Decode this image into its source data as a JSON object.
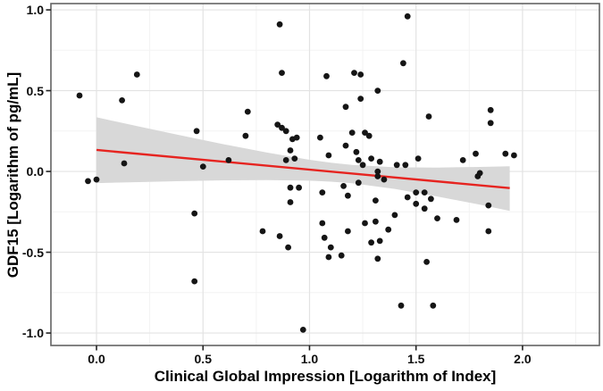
{
  "figure": {
    "background": "#ffffff",
    "colors": {
      "point": "#151515",
      "regression_line": "#e62420",
      "ci_band": "#d8d8d8",
      "grid_major": "#e3e3e3",
      "grid_minor": "#f3f3f3",
      "panel_border": "#636363",
      "tick_mark": "#222222",
      "text": "#000000"
    },
    "x_axis": {
      "title": "Clinical Global Impression [Logarithm of Index]",
      "ticks": [
        0.0,
        0.5,
        1.0,
        1.5,
        2.0
      ],
      "tick_labels": [
        "0.0",
        "0.5",
        "1.0",
        "1.5",
        "2.0"
      ],
      "minor_ticks": [
        0.25,
        0.75,
        1.25,
        1.75,
        2.25
      ]
    },
    "y_axis": {
      "title": "GDF15 [Logarithm of pg/mL]",
      "ticks": [
        1.0,
        0.5,
        0.0,
        -0.5,
        -1.0
      ],
      "tick_labels": [
        "1.0",
        "0.5",
        "0.0",
        "-0.5",
        "-1.0"
      ],
      "minor_ticks": [
        0.75,
        0.25,
        -0.25,
        -0.75
      ]
    }
  },
  "chart_data": {
    "type": "scatter",
    "title": "",
    "xlabel": "Clinical Global Impression [Logarithm of Index]",
    "ylabel": "GDF15 [Logarithm of pg/mL]",
    "xlim": [
      -0.214,
      2.361
    ],
    "ylim": [
      -1.077,
      1.039
    ],
    "grid": true,
    "legend": "none",
    "points": [
      [
        -0.08,
        0.47
      ],
      [
        0.12,
        0.44
      ],
      [
        0.19,
        0.6
      ],
      [
        0.47,
        0.25
      ],
      [
        0.13,
        0.05
      ],
      [
        0.5,
        0.03
      ],
      [
        0.62,
        0.07
      ],
      [
        -0.04,
        -0.06
      ],
      [
        0.0,
        -0.05
      ],
      [
        0.46,
        -0.26
      ],
      [
        0.46,
        -0.68
      ],
      [
        0.86,
        0.91
      ],
      [
        1.46,
        0.96
      ],
      [
        0.87,
        0.61
      ],
      [
        1.08,
        0.59
      ],
      [
        1.21,
        0.61
      ],
      [
        1.24,
        0.6
      ],
      [
        1.44,
        0.67
      ],
      [
        1.32,
        0.5
      ],
      [
        1.24,
        0.45
      ],
      [
        1.17,
        0.4
      ],
      [
        0.71,
        0.37
      ],
      [
        0.85,
        0.29
      ],
      [
        0.87,
        0.27
      ],
      [
        0.89,
        0.25
      ],
      [
        0.7,
        0.22
      ],
      [
        0.92,
        0.2
      ],
      [
        0.94,
        0.21
      ],
      [
        1.05,
        0.21
      ],
      [
        1.2,
        0.24
      ],
      [
        1.26,
        0.24
      ],
      [
        1.28,
        0.22
      ],
      [
        0.91,
        0.13
      ],
      [
        1.17,
        0.16
      ],
      [
        1.09,
        0.1
      ],
      [
        1.22,
        0.12
      ],
      [
        1.23,
        0.07
      ],
      [
        0.89,
        0.07
      ],
      [
        0.93,
        0.08
      ],
      [
        1.25,
        0.04
      ],
      [
        1.29,
        0.08
      ],
      [
        1.33,
        0.06
      ],
      [
        1.41,
        0.04
      ],
      [
        1.45,
        0.04
      ],
      [
        1.51,
        0.08
      ],
      [
        1.32,
        0.0
      ],
      [
        1.56,
        0.34
      ],
      [
        1.85,
        0.38
      ],
      [
        1.85,
        0.3
      ],
      [
        1.92,
        0.11
      ],
      [
        1.96,
        0.1
      ],
      [
        1.78,
        0.11
      ],
      [
        1.72,
        0.07
      ],
      [
        1.8,
        -0.01
      ],
      [
        0.91,
        -0.1
      ],
      [
        0.95,
        -0.1
      ],
      [
        0.91,
        -0.19
      ],
      [
        1.06,
        -0.13
      ],
      [
        1.16,
        -0.09
      ],
      [
        1.18,
        -0.15
      ],
      [
        1.23,
        -0.07
      ],
      [
        1.31,
        -0.18
      ],
      [
        1.32,
        -0.03
      ],
      [
        1.35,
        -0.05
      ],
      [
        0.78,
        -0.37
      ],
      [
        0.86,
        -0.4
      ],
      [
        0.9,
        -0.47
      ],
      [
        1.06,
        -0.32
      ],
      [
        1.07,
        -0.41
      ],
      [
        1.1,
        -0.47
      ],
      [
        1.09,
        -0.53
      ],
      [
        1.15,
        -0.52
      ],
      [
        1.18,
        -0.37
      ],
      [
        1.26,
        -0.32
      ],
      [
        1.29,
        -0.44
      ],
      [
        1.31,
        -0.31
      ],
      [
        1.32,
        -0.54
      ],
      [
        1.33,
        -0.43
      ],
      [
        1.37,
        -0.36
      ],
      [
        1.4,
        -0.27
      ],
      [
        1.43,
        -0.83
      ],
      [
        0.97,
        -0.98
      ],
      [
        1.46,
        -0.16
      ],
      [
        1.5,
        -0.13
      ],
      [
        1.54,
        -0.13
      ],
      [
        1.5,
        -0.2
      ],
      [
        1.54,
        -0.23
      ],
      [
        1.57,
        -0.17
      ],
      [
        1.6,
        -0.29
      ],
      [
        1.69,
        -0.3
      ],
      [
        1.84,
        -0.21
      ],
      [
        1.84,
        -0.37
      ],
      [
        1.55,
        -0.56
      ],
      [
        1.58,
        -0.83
      ],
      [
        1.79,
        -0.03
      ]
    ],
    "regression_line": {
      "x": [
        0.0,
        1.94
      ],
      "y": [
        0.133,
        -0.103
      ]
    },
    "ci_band": {
      "x": [
        0.0,
        0.2,
        0.4,
        0.6,
        0.8,
        1.0,
        1.1,
        1.2,
        1.4,
        1.6,
        1.8,
        1.94
      ],
      "upper": [
        0.335,
        0.278,
        0.222,
        0.168,
        0.117,
        0.072,
        0.054,
        0.04,
        0.026,
        0.024,
        0.028,
        0.032
      ],
      "lower": [
        -0.072,
        -0.066,
        -0.06,
        -0.055,
        -0.053,
        -0.057,
        -0.063,
        -0.073,
        -0.108,
        -0.155,
        -0.206,
        -0.244
      ]
    }
  }
}
